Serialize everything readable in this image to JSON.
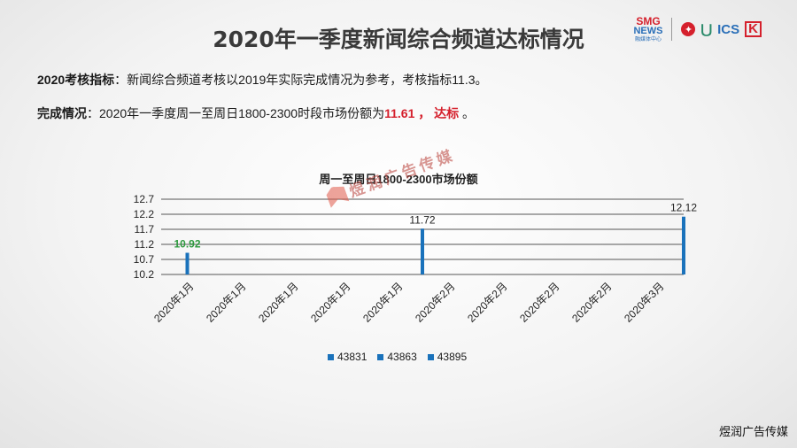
{
  "page": {
    "title": "2020年一季度新闻综合频道达标情况"
  },
  "logos": {
    "smg_line1": "SMG",
    "smg_line2": "NEWS",
    "smg_line3": "融媒体中心",
    "ics": "ICS",
    "k": "K"
  },
  "info": {
    "indicator_label": "2020考核指标",
    "indicator_text": "：新闻综合频道考核以2019年实际完成情况为参考，考核指标11.3。",
    "completion_label": "完成情况",
    "completion_text": "：2020年一季度周一至周日1800-2300时段市场份额为",
    "completion_value": "11.61",
    "completion_sep": " ， ",
    "completion_status": "达标",
    "completion_end": " 。"
  },
  "watermark": {
    "center_text": "煜润广告传媒",
    "corner_text": "煜润广告传媒"
  },
  "chart_data": {
    "type": "bar",
    "title": "周一至周日1800-2300市场份额",
    "categories": [
      "2020年1月",
      "2020年1月",
      "2020年1月",
      "2020年1月",
      "2020年1月",
      "2020年2月",
      "2020年2月",
      "2020年2月",
      "2020年2月",
      "2020年3月"
    ],
    "yticks": [
      "12.7",
      "12.2",
      "11.7",
      "11.2",
      "10.7",
      "10.2"
    ],
    "ylim": [
      10.2,
      12.7
    ],
    "series": [
      {
        "name": "43831",
        "x_index": 0,
        "value": 10.92,
        "label": "10.92",
        "label_color": "#2e9a3e"
      },
      {
        "name": "43863",
        "x_index": 4.5,
        "value": 11.72,
        "label": "11.72",
        "label_color": "#222222"
      },
      {
        "name": "43895",
        "x_index": 9.5,
        "value": 12.12,
        "label": "12.12",
        "label_color": "#222222"
      }
    ],
    "color": "#1a72bb",
    "grid": true,
    "legend": "bottom"
  }
}
